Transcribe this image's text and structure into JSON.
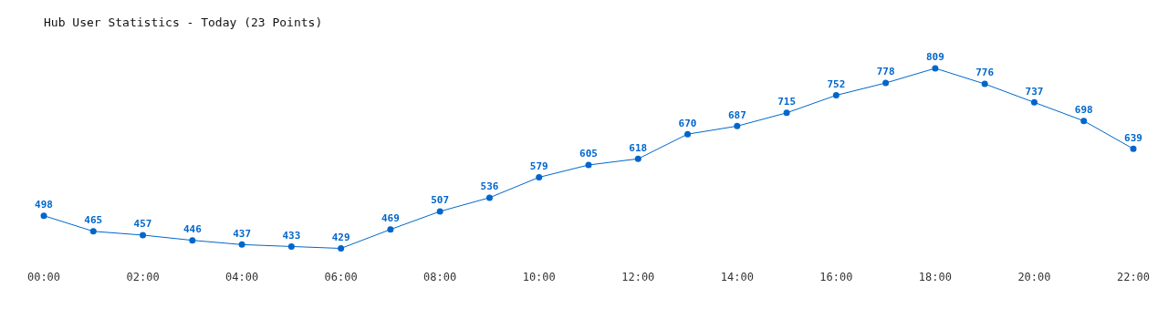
{
  "chart_data": {
    "type": "line",
    "title": "Hub User Statistics - Today (23 Points)",
    "x": [
      0,
      1,
      2,
      3,
      4,
      5,
      6,
      7,
      8,
      9,
      10,
      11,
      12,
      13,
      14,
      15,
      16,
      17,
      18,
      19,
      20,
      21,
      22
    ],
    "series": [
      {
        "color": "#0066cc",
        "values": [
          498,
          465,
          457,
          446,
          437,
          433,
          429,
          469,
          507,
          536,
          579,
          605,
          618,
          670,
          687,
          715,
          752,
          778,
          809,
          776,
          737,
          698,
          639
        ]
      }
    ],
    "xlim": [
      0,
      22
    ],
    "xticks": [
      {
        "value": 0,
        "label": "00:00"
      },
      {
        "value": 2,
        "label": "02:00"
      },
      {
        "value": 4,
        "label": "04:00"
      },
      {
        "value": 6,
        "label": "06:00"
      },
      {
        "value": 8,
        "label": "08:00"
      },
      {
        "value": 10,
        "label": "10:00"
      },
      {
        "value": 12,
        "label": "12:00"
      },
      {
        "value": 14,
        "label": "14:00"
      },
      {
        "value": 16,
        "label": "16:00"
      },
      {
        "value": 18,
        "label": "18:00"
      },
      {
        "value": 20,
        "label": "20:00"
      },
      {
        "value": 22,
        "label": "22:00"
      }
    ],
    "data_labels": true,
    "grid": false,
    "legend": false,
    "marker": "circle",
    "line_style": "solid"
  }
}
